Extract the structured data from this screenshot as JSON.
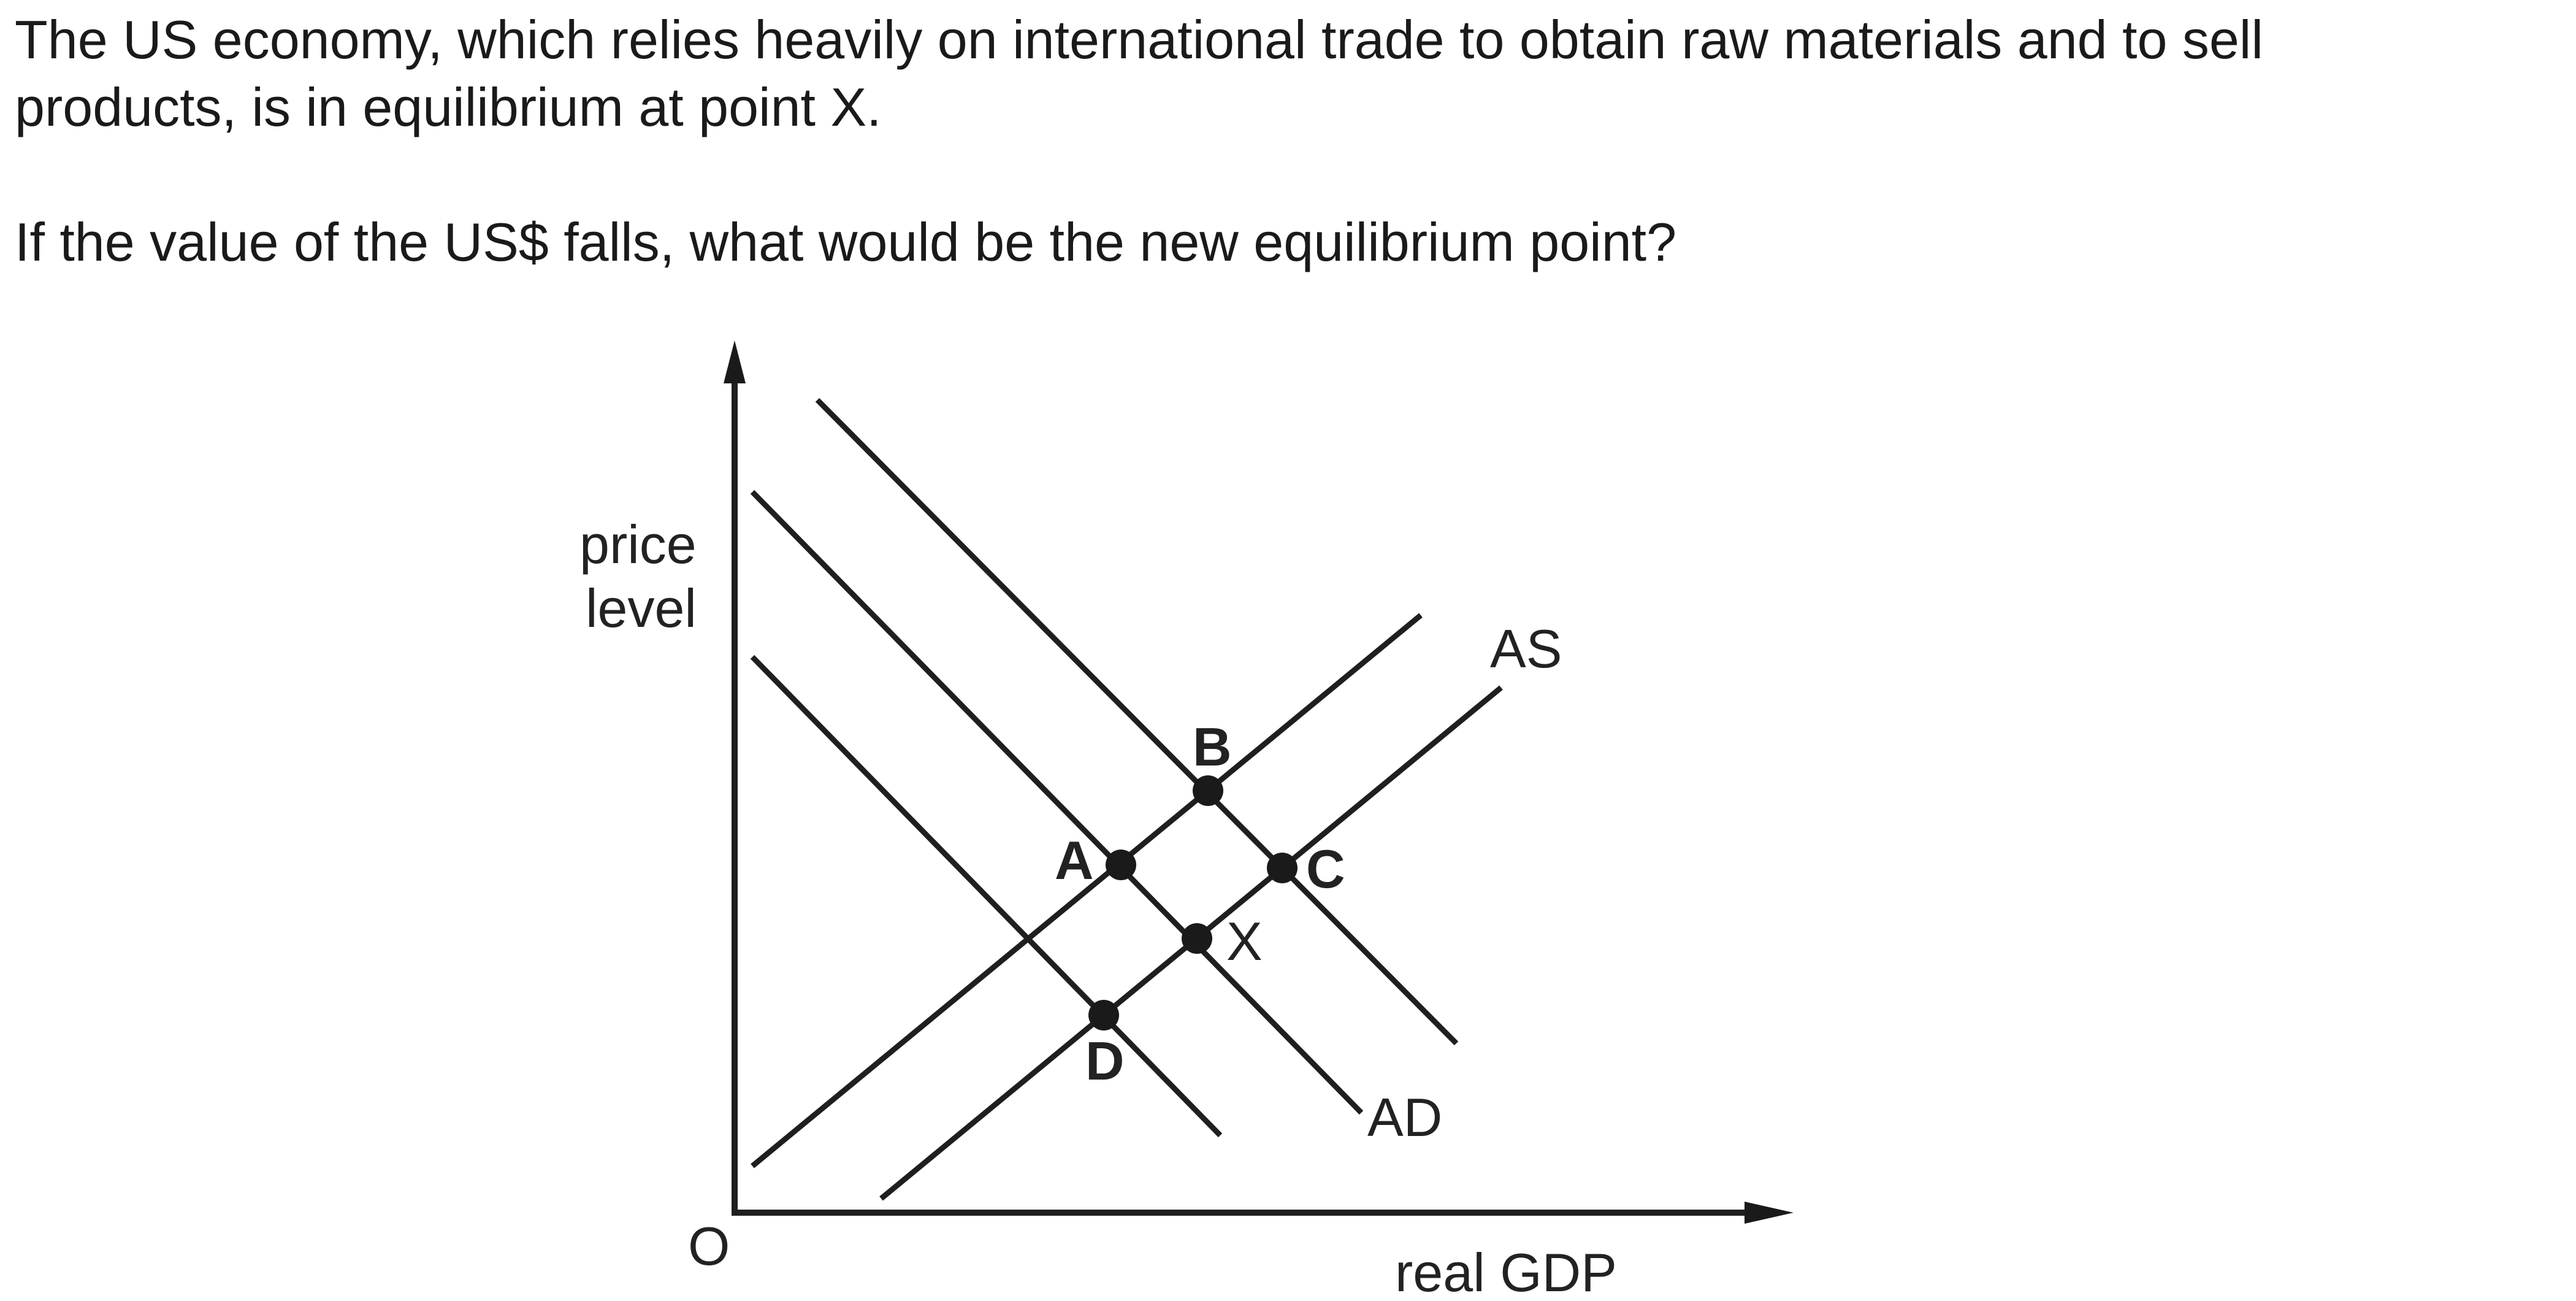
{
  "question": {
    "line1": "The US economy, which relies heavily on international trade to obtain raw materials and to sell",
    "line2": "products, is in equilibrium at point X.",
    "line3": "If the value of the US$ falls, what would be the new equilibrium point?"
  },
  "diagram": {
    "y_axis_label_1": "price",
    "y_axis_label_2": "level",
    "x_axis_label": "real GDP",
    "origin_label": "O",
    "as_label": "AS",
    "ad_label": "AD",
    "points": {
      "a": "A",
      "b": "B",
      "c": "C",
      "d": "D",
      "x": "X"
    }
  }
}
